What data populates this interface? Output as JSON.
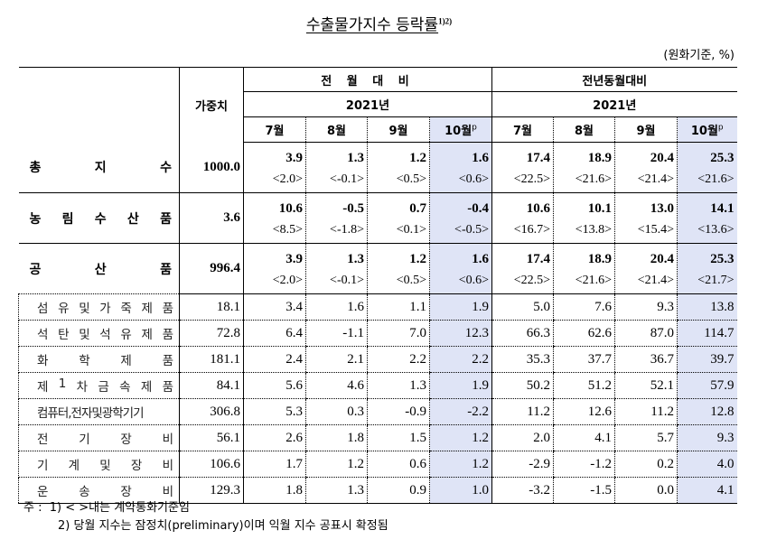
{
  "title": "수출물가지수 등락률",
  "title_superscript": "1)2)",
  "unit": "(원화기준, %)",
  "header": {
    "weight": "가중치",
    "group_mom": "전 월 대 비",
    "group_yoy": "전년동월대비",
    "year_mom": "2021년",
    "year_yoy": "2021년",
    "months": [
      "7월",
      "8월",
      "9월",
      "10월"
    ],
    "prelim_mark": "p"
  },
  "rows": [
    {
      "label": [
        "총",
        "지",
        "수"
      ],
      "weight": "1000.0",
      "level": "major",
      "values": [
        "3.9",
        "1.3",
        "1.2",
        "1.6",
        "17.4",
        "18.9",
        "20.4",
        "25.3"
      ],
      "contract": [
        "<2.0>",
        "<-0.1>",
        "<0.5>",
        "<0.6>",
        "<22.5>",
        "<21.6>",
        "<21.4>",
        "<21.6>"
      ]
    },
    {
      "label": [
        "농",
        "림",
        "수",
        "산",
        "품"
      ],
      "weight": "3.6",
      "level": "major",
      "values": [
        "10.6",
        "-0.5",
        "0.7",
        "-0.4",
        "10.6",
        "10.1",
        "13.0",
        "14.1"
      ],
      "contract": [
        "<8.5>",
        "<-1.8>",
        "<0.1>",
        "<-0.5>",
        "<16.7>",
        "<13.8>",
        "<15.4>",
        "<13.6>"
      ]
    },
    {
      "label": [
        "공",
        "산",
        "품"
      ],
      "weight": "996.4",
      "level": "major",
      "values": [
        "3.9",
        "1.3",
        "1.2",
        "1.6",
        "17.4",
        "18.9",
        "20.4",
        "25.3"
      ],
      "contract": [
        "<2.0>",
        "<-0.1>",
        "<0.5>",
        "<0.6>",
        "<22.5>",
        "<21.6>",
        "<21.4>",
        "<21.7>"
      ]
    },
    {
      "label": [
        "섬",
        "유",
        "및",
        "가",
        "죽",
        "제",
        "품"
      ],
      "weight": "18.1",
      "level": "sub",
      "values": [
        "3.4",
        "1.6",
        "1.1",
        "1.9",
        "5.0",
        "7.6",
        "9.3",
        "13.8"
      ]
    },
    {
      "label": [
        "석",
        "탄",
        "및",
        "석",
        "유",
        "제",
        "품"
      ],
      "weight": "72.8",
      "level": "sub",
      "values": [
        "6.4",
        "-1.1",
        "7.0",
        "12.3",
        "66.3",
        "62.6",
        "87.0",
        "114.7"
      ]
    },
    {
      "label": [
        "화",
        "학",
        "제",
        "품"
      ],
      "weight": "181.1",
      "level": "sub",
      "values": [
        "2.4",
        "2.1",
        "2.2",
        "2.2",
        "35.3",
        "37.7",
        "36.7",
        "39.7"
      ]
    },
    {
      "label": [
        "제",
        "1",
        "차",
        "금",
        "속",
        "제",
        "품"
      ],
      "weight": "84.1",
      "level": "sub",
      "values": [
        "5.6",
        "4.6",
        "1.3",
        "1.9",
        "50.2",
        "51.2",
        "52.1",
        "57.9"
      ]
    },
    {
      "label": [
        "컴퓨터,전자및광학기기"
      ],
      "weight": "306.8",
      "level": "sub",
      "values": [
        "5.3",
        "0.3",
        "-0.9",
        "-2.2",
        "11.2",
        "12.6",
        "11.2",
        "12.8"
      ]
    },
    {
      "label": [
        "전",
        "기",
        "장",
        "비"
      ],
      "weight": "56.1",
      "level": "sub",
      "values": [
        "2.6",
        "1.8",
        "1.5",
        "1.2",
        "2.0",
        "4.1",
        "5.7",
        "9.3"
      ]
    },
    {
      "label": [
        "기",
        "계",
        "및",
        "장",
        "비"
      ],
      "weight": "106.6",
      "level": "sub",
      "values": [
        "1.7",
        "1.2",
        "0.6",
        "1.2",
        "-2.9",
        "-1.2",
        "0.2",
        "4.0"
      ]
    },
    {
      "label": [
        "운",
        "송",
        "장",
        "비"
      ],
      "weight": "129.3",
      "level": "sub",
      "values": [
        "1.8",
        "1.3",
        "0.9",
        "1.0",
        "-3.2",
        "-1.5",
        "0.0",
        "4.1"
      ]
    }
  ],
  "notes": {
    "prefix": "주 :",
    "note1": "1) < >내는 계약통화기준임",
    "note2": "2) 당월 지수는 잠정치(preliminary)이며 익월 지수 공표시 확정됨"
  }
}
